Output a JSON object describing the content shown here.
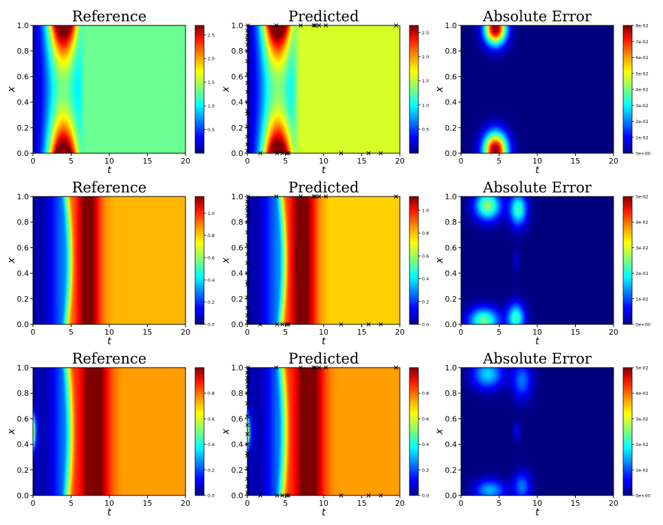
{
  "chart_data": [
    {
      "type": "heatmap",
      "kind": "reference",
      "row": 0,
      "title": "Reference",
      "xlabel": "t",
      "ylabel": "x",
      "xlim": [
        0,
        20
      ],
      "ylim": [
        0,
        1
      ],
      "xticks": [
        "0",
        "5",
        "10",
        "15",
        "20"
      ],
      "yticks": [
        "0.0",
        "0.2",
        "0.4",
        "0.6",
        "0.8",
        "1.0"
      ],
      "colormap": "jet",
      "colorbar": {
        "min": 0,
        "max": 2.7,
        "ticks": [
          [
            "0.5",
            0.5
          ],
          [
            "1.0",
            1.0
          ],
          [
            "1.5",
            1.5
          ],
          [
            "2.0",
            2.0
          ],
          [
            "2.5",
            2.5
          ]
        ]
      },
      "peak_t": 4,
      "front_t": 6,
      "late_value": 1.3,
      "endwall": false
    },
    {
      "type": "heatmap",
      "kind": "predicted",
      "row": 0,
      "title": "Predicted",
      "xlabel": "t",
      "ylabel": "x",
      "xlim": [
        0,
        20
      ],
      "ylim": [
        0,
        1
      ],
      "xticks": [
        "0",
        "5",
        "10",
        "15",
        "20"
      ],
      "yticks": [
        "0.0",
        "0.2",
        "0.4",
        "0.6",
        "0.8",
        "1.0"
      ],
      "colormap": "jet",
      "colorbar": {
        "min": 0,
        "max": 2.65,
        "ticks": [
          [
            "0.5",
            0.5
          ],
          [
            "1.0",
            1.0
          ],
          [
            "1.5",
            1.5
          ],
          [
            "2.0",
            2.0
          ],
          [
            "2.5",
            2.5
          ]
        ]
      },
      "peak_t": 4,
      "front_t": 6,
      "late_value": 1.55,
      "endwall": false,
      "markers": "x"
    },
    {
      "type": "heatmap",
      "kind": "error",
      "row": 0,
      "title": "Absolute Error",
      "xlabel": "t",
      "ylabel": "x",
      "xlim": [
        0,
        20
      ],
      "ylim": [
        0,
        1
      ],
      "xticks": [
        "0",
        "5",
        "10",
        "15",
        "20"
      ],
      "yticks": [
        "0.0",
        "0.2",
        "0.4",
        "0.6",
        "0.8",
        "1.0"
      ],
      "colormap": "jet",
      "colorbar": {
        "min": 0,
        "max": 0.08,
        "ticks": [
          [
            "0e+00",
            0
          ],
          [
            "1e-02",
            0.01
          ],
          [
            "2e-02",
            0.02
          ],
          [
            "3e-02",
            0.03
          ],
          [
            "4e-02",
            0.04
          ],
          [
            "5e-02",
            0.05
          ],
          [
            "6e-02",
            0.06
          ],
          [
            "7e-02",
            0.07
          ],
          [
            "8e-02",
            0.08
          ]
        ]
      },
      "blobs": [
        {
          "t": 4.5,
          "x": 0.98,
          "st": 1.0,
          "sx": 0.09,
          "a": 0.08
        },
        {
          "t": 4.5,
          "x": 0.02,
          "st": 1.1,
          "sx": 0.1,
          "a": 0.08
        }
      ]
    },
    {
      "type": "heatmap",
      "kind": "reference",
      "row": 1,
      "title": "Reference",
      "xlabel": "t",
      "ylabel": "x",
      "xlim": [
        0,
        20
      ],
      "ylim": [
        0,
        1
      ],
      "xticks": [
        "0",
        "5",
        "10",
        "15",
        "20"
      ],
      "yticks": [
        "0.0",
        "0.2",
        "0.4",
        "0.6",
        "0.8",
        "1.0"
      ],
      "colormap": "jet",
      "colorbar": {
        "min": 0,
        "max": 1.15,
        "ticks": [
          [
            "0.0",
            0
          ],
          [
            "0.2",
            0.2
          ],
          [
            "0.4",
            0.4
          ],
          [
            "0.6",
            0.6
          ],
          [
            "0.8",
            0.8
          ],
          [
            "1.0",
            1.0
          ]
        ]
      },
      "peak_t": 7,
      "front_t": 5,
      "late_value": 0.8,
      "endwall": false
    },
    {
      "type": "heatmap",
      "kind": "predicted",
      "row": 1,
      "title": "Predicted",
      "xlabel": "t",
      "ylabel": "x",
      "xlim": [
        0,
        20
      ],
      "ylim": [
        0,
        1
      ],
      "xticks": [
        "0",
        "5",
        "10",
        "15",
        "20"
      ],
      "yticks": [
        "0.0",
        "0.2",
        "0.4",
        "0.6",
        "0.8",
        "1.0"
      ],
      "colormap": "jet",
      "colorbar": {
        "min": 0,
        "max": 1.12,
        "ticks": [
          [
            "0.0",
            0
          ],
          [
            "0.2",
            0.2
          ],
          [
            "0.4",
            0.4
          ],
          [
            "0.6",
            0.6
          ],
          [
            "0.8",
            0.8
          ],
          [
            "1.0",
            1.0
          ]
        ]
      },
      "peak_t": 7,
      "front_t": 5,
      "late_value": 0.75,
      "endwall": false,
      "markers": "x"
    },
    {
      "type": "heatmap",
      "kind": "error",
      "row": 1,
      "title": "Absolute Error",
      "xlabel": "t",
      "ylabel": "x",
      "xlim": [
        0,
        20
      ],
      "ylim": [
        0,
        1
      ],
      "xticks": [
        "0",
        "5",
        "10",
        "15",
        "20"
      ],
      "yticks": [
        "0.0",
        "0.2",
        "0.4",
        "0.6",
        "0.8",
        "1.0"
      ],
      "colormap": "jet",
      "colorbar": {
        "min": 0,
        "max": 0.05,
        "ticks": [
          [
            "0e+00",
            0
          ],
          [
            "1e-02",
            0.01
          ],
          [
            "2e-02",
            0.02
          ],
          [
            "3e-02",
            0.03
          ],
          [
            "4e-02",
            0.04
          ],
          [
            "5e-02",
            0.05
          ]
        ]
      },
      "blobs": [
        {
          "t": 3.5,
          "x": 0.93,
          "st": 1.2,
          "sx": 0.08,
          "a": 0.026
        },
        {
          "t": 7.5,
          "x": 0.9,
          "st": 0.8,
          "sx": 0.09,
          "a": 0.022
        },
        {
          "t": 3,
          "x": 0.03,
          "st": 1.4,
          "sx": 0.07,
          "a": 0.024
        },
        {
          "t": 7.2,
          "x": 0.05,
          "st": 0.8,
          "sx": 0.08,
          "a": 0.022
        },
        {
          "t": 7.2,
          "x": 0.5,
          "st": 0.3,
          "sx": 0.06,
          "a": 0.004
        }
      ]
    },
    {
      "type": "heatmap",
      "kind": "reference",
      "row": 2,
      "title": "Reference",
      "xlabel": "t",
      "ylabel": "x",
      "xlim": [
        0,
        20
      ],
      "ylim": [
        0,
        1
      ],
      "xticks": [
        "0",
        "5",
        "10",
        "15",
        "20"
      ],
      "yticks": [
        "0.0",
        "0.2",
        "0.4",
        "0.6",
        "0.8",
        "1.0"
      ],
      "colormap": "jet",
      "colorbar": {
        "min": 0,
        "max": 1.0,
        "ticks": [
          [
            "0.0",
            0
          ],
          [
            "0.2",
            0.2
          ],
          [
            "0.4",
            0.4
          ],
          [
            "0.6",
            0.6
          ],
          [
            "0.8",
            0.8
          ]
        ]
      },
      "peak_t": 8,
      "front_t": 5,
      "late_value": 0.72,
      "endwall": true
    },
    {
      "type": "heatmap",
      "kind": "predicted",
      "row": 2,
      "title": "Predicted",
      "xlabel": "t",
      "ylabel": "x",
      "xlim": [
        0,
        20
      ],
      "ylim": [
        0,
        1
      ],
      "xticks": [
        "0",
        "5",
        "10",
        "15",
        "20"
      ],
      "yticks": [
        "0.0",
        "0.2",
        "0.4",
        "0.6",
        "0.8",
        "1.0"
      ],
      "colormap": "jet",
      "colorbar": {
        "min": 0,
        "max": 1.0,
        "ticks": [
          [
            "0.0",
            0
          ],
          [
            "0.2",
            0.2
          ],
          [
            "0.4",
            0.4
          ],
          [
            "0.6",
            0.6
          ],
          [
            "0.8",
            0.8
          ]
        ]
      },
      "peak_t": 8,
      "front_t": 5,
      "late_value": 0.72,
      "endwall": true,
      "markers": "x"
    },
    {
      "type": "heatmap",
      "kind": "error",
      "row": 2,
      "title": "Absolute Error",
      "xlabel": "t",
      "ylabel": "x",
      "xlim": [
        0,
        20
      ],
      "ylim": [
        0,
        1
      ],
      "xticks": [
        "0",
        "5",
        "10",
        "15",
        "20"
      ],
      "yticks": [
        "0.0",
        "0.2",
        "0.4",
        "0.6",
        "0.8",
        "1.0"
      ],
      "colormap": "jet",
      "colorbar": {
        "min": 0,
        "max": 0.05,
        "ticks": [
          [
            "0e+00",
            0
          ],
          [
            "1e-02",
            0.01
          ],
          [
            "2e-02",
            0.02
          ],
          [
            "3e-02",
            0.03
          ],
          [
            "4e-02",
            0.04
          ],
          [
            "5e-02",
            0.05
          ]
        ]
      },
      "blobs": [
        {
          "t": 3.5,
          "x": 0.95,
          "st": 1.4,
          "sx": 0.08,
          "a": 0.017
        },
        {
          "t": 8,
          "x": 0.9,
          "st": 0.9,
          "sx": 0.1,
          "a": 0.012
        },
        {
          "t": 3.8,
          "x": 0.04,
          "st": 1.4,
          "sx": 0.06,
          "a": 0.015
        },
        {
          "t": 8,
          "x": 0.07,
          "st": 0.8,
          "sx": 0.08,
          "a": 0.012
        },
        {
          "t": 7.3,
          "x": 0.5,
          "st": 0.3,
          "sx": 0.05,
          "a": 0.006
        }
      ]
    }
  ],
  "markers": {
    "boundary_top": [
      [
        0.1,
        1
      ],
      [
        3.8,
        1
      ],
      [
        7,
        1
      ],
      [
        8.7,
        1
      ],
      [
        8.9,
        1
      ],
      [
        9.4,
        1
      ],
      [
        10.3,
        1
      ],
      [
        19.5,
        1
      ]
    ],
    "boundary_bottom": [
      [
        1.7,
        0
      ],
      [
        3.9,
        0
      ],
      [
        4.6,
        0
      ],
      [
        5.2,
        0
      ],
      [
        5.4,
        0
      ],
      [
        12.3,
        0
      ],
      [
        15.9,
        0
      ],
      [
        17.5,
        0
      ]
    ],
    "initial": [
      [
        0,
        0.96
      ],
      [
        0,
        0.92
      ],
      [
        0,
        0.89
      ],
      [
        0,
        0.85
      ],
      [
        0,
        0.8
      ],
      [
        0,
        0.72
      ],
      [
        0,
        0.62
      ],
      [
        0,
        0.55
      ],
      [
        0,
        0.48
      ],
      [
        0,
        0.4
      ],
      [
        0,
        0.33
      ],
      [
        0,
        0.31
      ],
      [
        0,
        0.21
      ],
      [
        0,
        0.13
      ],
      [
        0,
        0.07
      ],
      [
        0,
        0.02
      ]
    ]
  }
}
